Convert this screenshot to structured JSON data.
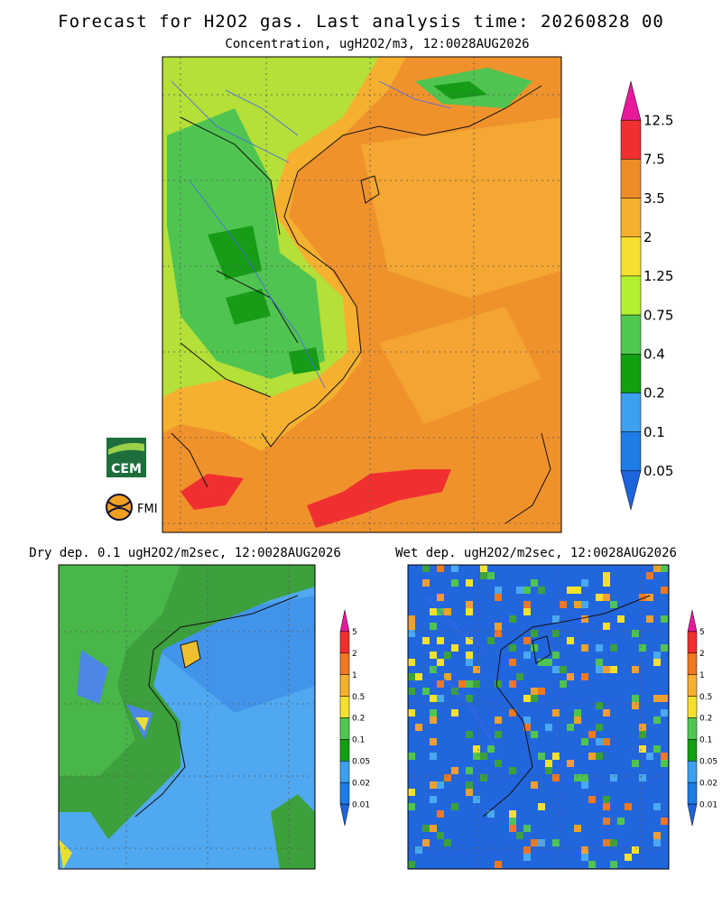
{
  "title": "Forecast for H2O2 gas. Last analysis time: 20260828 00",
  "main": {
    "subtitle": "Concentration, ugH2O2/m3, 12:0028AUG2026",
    "legend": [
      12.5,
      7.5,
      3.5,
      2,
      1.25,
      0.75,
      0.4,
      0.2,
      0.1,
      0.05
    ]
  },
  "dry": {
    "title": "Dry dep. 0.1 ugH2O2/m2sec, 12:0028AUG2026",
    "legend": [
      5,
      2,
      1,
      0.5,
      0.2,
      0.1,
      0.05,
      0.02,
      0.01
    ]
  },
  "wet": {
    "title": "Wet dep. ugH2O2/m2sec, 12:0028AUG2026",
    "legend": [
      5,
      2,
      1,
      0.5,
      0.2,
      0.1,
      0.05,
      0.02,
      0.01
    ]
  },
  "logos": [
    "CEM",
    "FMI"
  ]
}
